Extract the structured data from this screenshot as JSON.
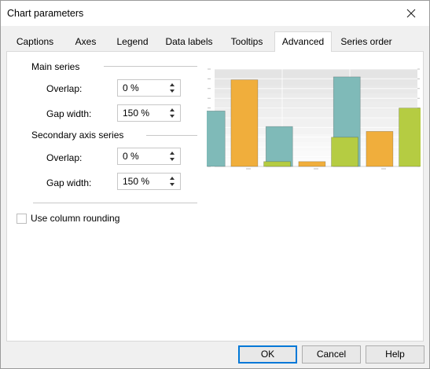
{
  "window": {
    "title": "Chart parameters"
  },
  "tabs": [
    {
      "label": "Captions"
    },
    {
      "label": "Axes"
    },
    {
      "label": "Legend"
    },
    {
      "label": "Data labels"
    },
    {
      "label": "Tooltips"
    },
    {
      "label": "Advanced"
    },
    {
      "label": "Series order"
    }
  ],
  "active_tab": "Advanced",
  "main_series": {
    "title": "Main series",
    "overlap_label": "Overlap:",
    "overlap_value": "0 %",
    "gap_label": "Gap width:",
    "gap_value": "150 %"
  },
  "secondary_series": {
    "title": "Secondary axis series",
    "overlap_label": "Overlap:",
    "overlap_value": "0 %",
    "gap_label": "Gap width:",
    "gap_value": "150 %"
  },
  "column_rounding": {
    "label": "Use column rounding",
    "checked": false
  },
  "buttons": {
    "ok": "OK",
    "cancel": "Cancel",
    "help": "Help"
  },
  "colors": {
    "accent": "#0078d7",
    "series_teal": "#7fbab8",
    "series_orange": "#f0ae3c",
    "series_green": "#b5cc42"
  },
  "chart_data": {
    "type": "bar",
    "categories": [
      "",
      "",
      ""
    ],
    "series": [
      {
        "values": [
          57,
          41,
          92
        ],
        "color": "#7fbab8"
      },
      {
        "values": [
          89,
          5,
          36
        ],
        "color": "#f0ae3c"
      },
      {
        "values": [
          5,
          30,
          60
        ],
        "color": "#b5cc42"
      }
    ],
    "ylim": [
      0,
      100
    ],
    "grid": true,
    "legend": "none"
  }
}
